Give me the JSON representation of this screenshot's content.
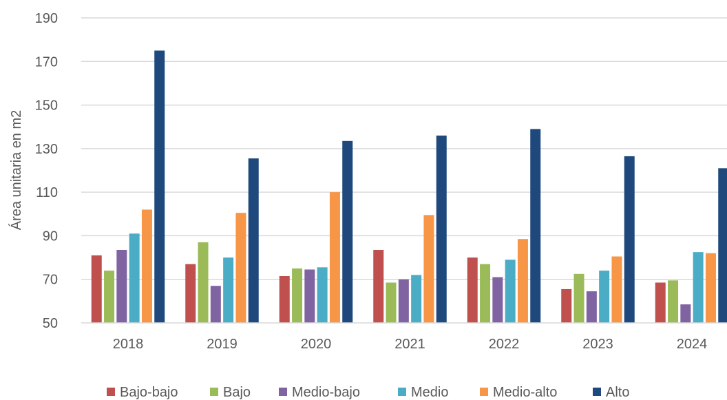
{
  "chart_data": {
    "type": "bar",
    "title": "",
    "xlabel": "",
    "ylabel": "Área unitaria en m2",
    "ylim": [
      50,
      190
    ],
    "yticks": [
      50,
      70,
      90,
      110,
      130,
      150,
      170,
      190
    ],
    "grid": true,
    "legend_position": "bottom",
    "categories": [
      "2018",
      "2019",
      "2020",
      "2021",
      "2022",
      "2023",
      "2024"
    ],
    "series": [
      {
        "name": "Bajo-bajo",
        "color": "#C0504D",
        "values": [
          81,
          77,
          71.5,
          83.5,
          80,
          65.5,
          68.5
        ]
      },
      {
        "name": "Bajo",
        "color": "#9BBB59",
        "values": [
          74,
          87,
          75,
          68.5,
          77,
          72.5,
          69.5
        ]
      },
      {
        "name": "Medio-bajo",
        "color": "#8064A2",
        "values": [
          83.5,
          67,
          74.5,
          70,
          71,
          64.5,
          58.5
        ]
      },
      {
        "name": "Medio",
        "color": "#4BACC6",
        "values": [
          91,
          80,
          75.5,
          72,
          79,
          74,
          82.5
        ]
      },
      {
        "name": "Medio-alto",
        "color": "#F79646",
        "values": [
          102,
          100.5,
          110,
          99.5,
          88.5,
          80.5,
          82
        ]
      },
      {
        "name": "Alto",
        "color": "#1F497D",
        "values": [
          175,
          125.5,
          133.5,
          136,
          139,
          126.5,
          121
        ]
      }
    ]
  }
}
